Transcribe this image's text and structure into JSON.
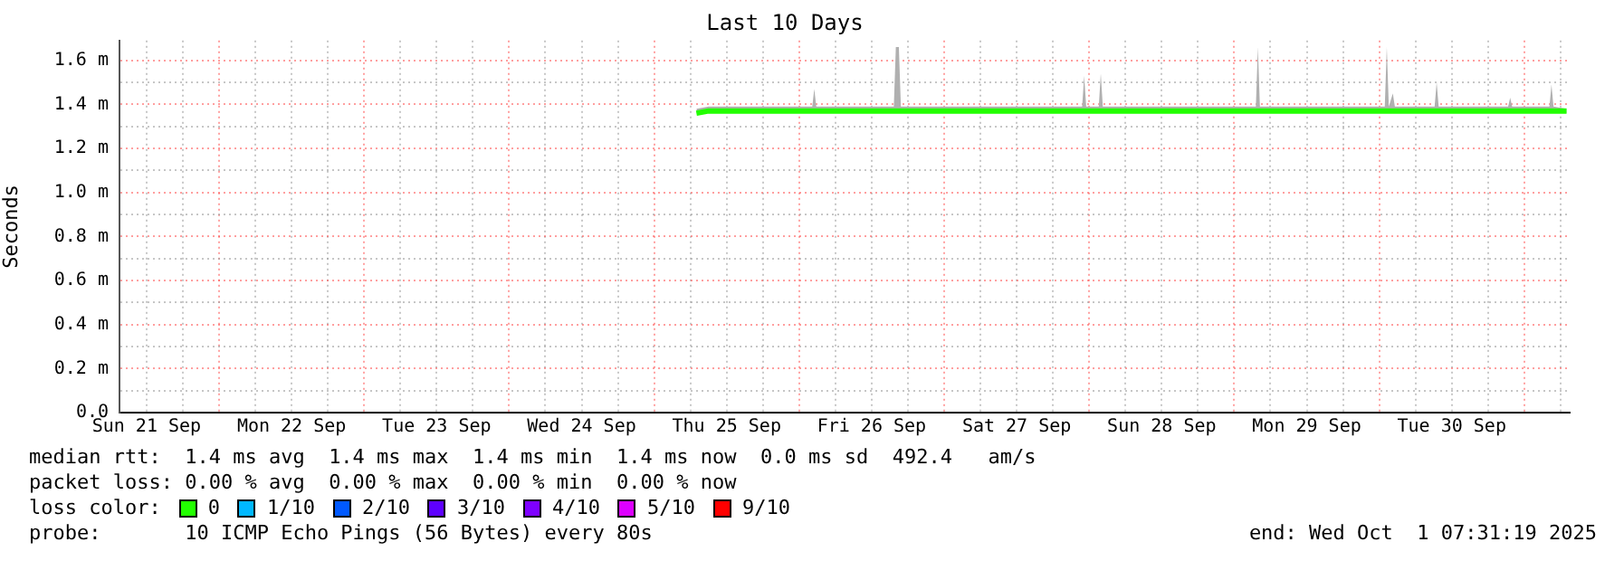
{
  "chart_data": {
    "type": "line",
    "title": "Last 10 Days",
    "ylabel": "Seconds",
    "legend": "bottom",
    "legend_title": "loss color:",
    "grid": true,
    "xlim": [
      "2025-09-21T07:31",
      "2025-10-01T07:31"
    ],
    "xticks": [
      {
        "value": "2025-09-21T12:00",
        "label": "Sun 21 Sep"
      },
      {
        "value": "2025-09-21T18:00",
        "label": null
      },
      {
        "value": "2025-09-22T00:00",
        "label": null
      },
      {
        "value": "2025-09-22T06:00",
        "label": null
      },
      {
        "value": "2025-09-22T12:00",
        "label": "Mon 22 Sep"
      },
      {
        "value": "2025-09-22T18:00",
        "label": null
      },
      {
        "value": "2025-09-23T00:00",
        "label": null
      },
      {
        "value": "2025-09-23T06:00",
        "label": null
      },
      {
        "value": "2025-09-23T12:00",
        "label": "Tue 23 Sep"
      },
      {
        "value": "2025-09-23T18:00",
        "label": null
      },
      {
        "value": "2025-09-24T00:00",
        "label": null
      },
      {
        "value": "2025-09-24T06:00",
        "label": null
      },
      {
        "value": "2025-09-24T12:00",
        "label": "Wed 24 Sep"
      },
      {
        "value": "2025-09-24T18:00",
        "label": null
      },
      {
        "value": "2025-09-25T00:00",
        "label": null
      },
      {
        "value": "2025-09-25T06:00",
        "label": null
      },
      {
        "value": "2025-09-25T12:00",
        "label": "Thu 25 Sep"
      },
      {
        "value": "2025-09-25T18:00",
        "label": null
      },
      {
        "value": "2025-09-26T00:00",
        "label": null
      },
      {
        "value": "2025-09-26T06:00",
        "label": null
      },
      {
        "value": "2025-09-26T12:00",
        "label": "Fri 26 Sep"
      },
      {
        "value": "2025-09-26T18:00",
        "label": null
      },
      {
        "value": "2025-09-27T00:00",
        "label": null
      },
      {
        "value": "2025-09-27T06:00",
        "label": null
      },
      {
        "value": "2025-09-27T12:00",
        "label": "Sat 27 Sep"
      },
      {
        "value": "2025-09-27T18:00",
        "label": null
      },
      {
        "value": "2025-09-28T00:00",
        "label": null
      },
      {
        "value": "2025-09-28T06:00",
        "label": null
      },
      {
        "value": "2025-09-28T12:00",
        "label": "Sun 28 Sep"
      },
      {
        "value": "2025-09-28T18:00",
        "label": null
      },
      {
        "value": "2025-09-29T00:00",
        "label": null
      },
      {
        "value": "2025-09-29T06:00",
        "label": null
      },
      {
        "value": "2025-09-29T12:00",
        "label": "Mon 29 Sep"
      },
      {
        "value": "2025-09-29T18:00",
        "label": null
      },
      {
        "value": "2025-09-30T00:00",
        "label": null
      },
      {
        "value": "2025-09-30T06:00",
        "label": null
      },
      {
        "value": "2025-09-30T12:00",
        "label": "Tue 30 Sep"
      },
      {
        "value": "2025-09-30T18:00",
        "label": null
      },
      {
        "value": "2025-10-01T00:00",
        "label": null
      },
      {
        "value": "2025-10-01T06:00",
        "label": null
      }
    ],
    "ylim": [
      0,
      1.69
    ],
    "yticks": [
      {
        "value": 0,
        "label": "0.0"
      },
      {
        "value": 0.1,
        "label": null
      },
      {
        "value": 0.2,
        "label": "0.2 m"
      },
      {
        "value": 0.3,
        "label": null
      },
      {
        "value": 0.4,
        "label": "0.4 m"
      },
      {
        "value": 0.5,
        "label": null
      },
      {
        "value": 0.6,
        "label": "0.6 m"
      },
      {
        "value": 0.7,
        "label": null
      },
      {
        "value": 0.8,
        "label": "0.8 m"
      },
      {
        "value": 0.9,
        "label": null
      },
      {
        "value": 1.0,
        "label": "1.0 m"
      },
      {
        "value": 1.1,
        "label": null
      },
      {
        "value": 1.2,
        "label": "1.2 m"
      },
      {
        "value": 1.3,
        "label": null
      },
      {
        "value": 1.4,
        "label": "1.4 m"
      },
      {
        "value": 1.5,
        "label": null
      },
      {
        "value": 1.6,
        "label": "1.6 m"
      }
    ],
    "series": [
      {
        "name": "0",
        "color": "#22ff00",
        "x": [
          "2025-09-25T07:00",
          "2025-09-25T09:00",
          "2025-09-25T12:00",
          "2025-09-25T15:00",
          "2025-09-25T18:00",
          "2025-09-25T21:00",
          "2025-09-26T00:00",
          "2025-09-26T02:10",
          "2025-09-26T02:30",
          "2025-09-26T02:50",
          "2025-09-26T06:00",
          "2025-09-26T09:00",
          "2025-09-26T12:00",
          "2025-09-26T15:40",
          "2025-09-26T16:00",
          "2025-09-26T16:30",
          "2025-09-26T16:50",
          "2025-09-26T21:00",
          "2025-09-27T00:00",
          "2025-09-27T03:00",
          "2025-09-27T06:00",
          "2025-09-27T09:00",
          "2025-09-27T12:00",
          "2025-09-27T15:00",
          "2025-09-27T18:00",
          "2025-09-27T22:50",
          "2025-09-27T23:10",
          "2025-09-27T23:30",
          "2025-09-28T01:35",
          "2025-09-28T01:55",
          "2025-09-28T02:15",
          "2025-09-28T06:00",
          "2025-09-28T09:00",
          "2025-09-28T12:00",
          "2025-09-28T15:00",
          "2025-09-28T18:00",
          "2025-09-28T21:00",
          "2025-09-29T00:00",
          "2025-09-29T03:35",
          "2025-09-29T03:55",
          "2025-09-29T04:15",
          "2025-09-29T09:00",
          "2025-09-29T12:00",
          "2025-09-29T15:00",
          "2025-09-29T18:00",
          "2025-09-29T21:00",
          "2025-09-30T00:00",
          "2025-09-30T00:55",
          "2025-09-30T01:15",
          "2025-09-30T01:35",
          "2025-09-30T02:15",
          "2025-09-30T02:35",
          "2025-09-30T09:10",
          "2025-09-30T09:30",
          "2025-09-30T09:50",
          "2025-09-30T15:00",
          "2025-09-30T18:00",
          "2025-09-30T21:20",
          "2025-09-30T21:40",
          "2025-09-30T22:00",
          "2025-10-01T04:10",
          "2025-10-01T04:30",
          "2025-10-01T04:50",
          "2025-10-01T07:00"
        ],
        "values": [
          1.36,
          1.37,
          1.37,
          1.37,
          1.37,
          1.37,
          1.37,
          1.37,
          1.37,
          1.37,
          1.37,
          1.37,
          1.37,
          1.37,
          1.37,
          1.37,
          1.37,
          1.37,
          1.37,
          1.37,
          1.37,
          1.37,
          1.37,
          1.37,
          1.37,
          1.37,
          1.37,
          1.37,
          1.37,
          1.37,
          1.37,
          1.37,
          1.37,
          1.37,
          1.37,
          1.37,
          1.37,
          1.37,
          1.37,
          1.37,
          1.37,
          1.37,
          1.37,
          1.37,
          1.37,
          1.37,
          1.37,
          1.37,
          1.37,
          1.37,
          1.37,
          1.37,
          1.37,
          1.37,
          1.37,
          1.37,
          1.37,
          1.37,
          1.37,
          1.37,
          1.37,
          1.37,
          1.37,
          1.37
        ],
        "lower": [
          1.36,
          1.36,
          1.36,
          1.36,
          1.36,
          1.36,
          1.36,
          1.36,
          1.36,
          1.36,
          1.36,
          1.36,
          1.36,
          1.36,
          1.36,
          1.36,
          1.36,
          1.36,
          1.36,
          1.36,
          1.36,
          1.36,
          1.36,
          1.36,
          1.36,
          1.36,
          1.36,
          1.36,
          1.36,
          1.36,
          1.36,
          1.36,
          1.36,
          1.36,
          1.36,
          1.36,
          1.36,
          1.36,
          1.36,
          1.36,
          1.36,
          1.36,
          1.36,
          1.36,
          1.36,
          1.36,
          1.36,
          1.36,
          1.36,
          1.36,
          1.36,
          1.36,
          1.36,
          1.36,
          1.36,
          1.36,
          1.36,
          1.36,
          1.36,
          1.36,
          1.36,
          1.36,
          1.36,
          1.36
        ],
        "upper": [
          1.38,
          1.39,
          1.39,
          1.39,
          1.39,
          1.39,
          1.39,
          1.39,
          1.47,
          1.39,
          1.39,
          1.39,
          1.39,
          1.39,
          1.66,
          1.66,
          1.39,
          1.39,
          1.39,
          1.39,
          1.39,
          1.39,
          1.39,
          1.39,
          1.39,
          1.39,
          1.53,
          1.39,
          1.39,
          1.54,
          1.39,
          1.39,
          1.39,
          1.39,
          1.39,
          1.39,
          1.39,
          1.39,
          1.39,
          1.66,
          1.39,
          1.39,
          1.39,
          1.39,
          1.39,
          1.39,
          1.39,
          1.39,
          1.66,
          1.39,
          1.45,
          1.39,
          1.39,
          1.5,
          1.39,
          1.39,
          1.39,
          1.39,
          1.43,
          1.39,
          1.39,
          1.49,
          1.39,
          1.38
        ]
      },
      {
        "name": "1/10",
        "color": "#00b8ff"
      },
      {
        "name": "2/10",
        "color": "#0059ff"
      },
      {
        "name": "3/10",
        "color": "#5e00ff"
      },
      {
        "name": "4/10",
        "color": "#7e00ff"
      },
      {
        "name": "5/10",
        "color": "#dd00ff"
      },
      {
        "name": "9/10",
        "color": "#ff0000"
      }
    ],
    "annotations": [
      "median rtt:  1.4 ms avg  1.4 ms max  1.4 ms min  1.4 ms now  0.0 ms sd  492.4   am/s",
      "packet loss: 0.00 % avg  0.00 % max  0.00 % min  0.00 % now",
      "probe:       10 ICMP Echo Pings (56 Bytes) every 80s",
      "end: Wed Oct  1 07:31:19 2025"
    ]
  }
}
